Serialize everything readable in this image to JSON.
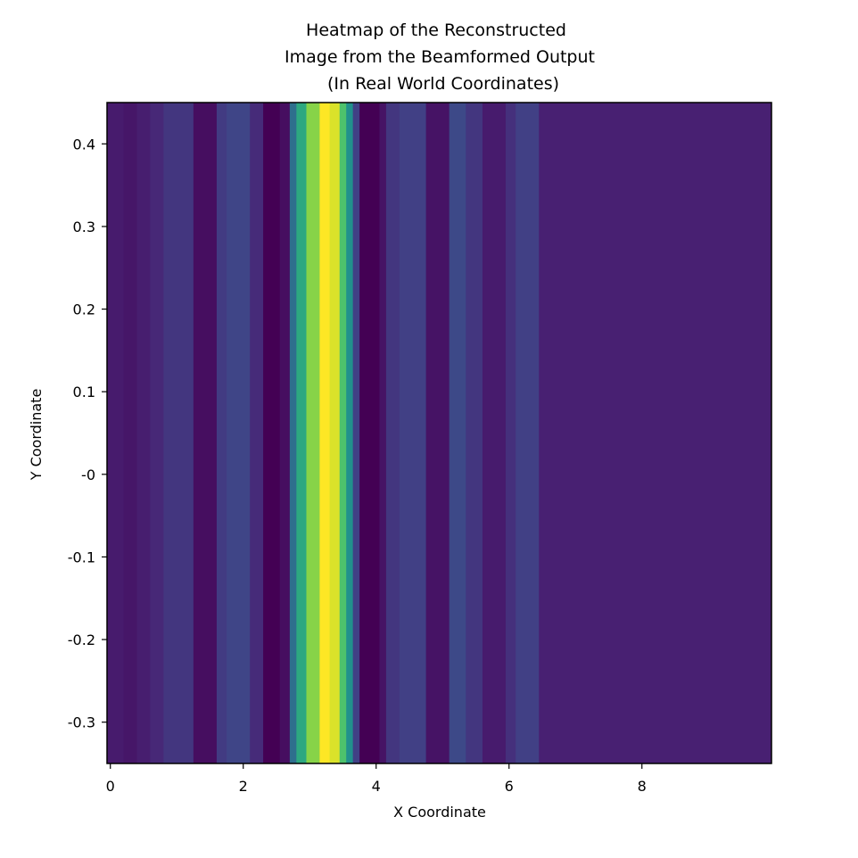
{
  "chart_data": {
    "type": "heatmap",
    "title_lines": [
      "Heatmap of the Reconstructed",
      "Image from the Beamformed Output",
      "(In Real World Coordinates)"
    ],
    "xlabel": "X Coordinate",
    "ylabel": "Y Coordinate",
    "xlim": [
      -0.05,
      9.95
    ],
    "ylim": [
      -0.35,
      0.45
    ],
    "x_ticks": [
      0,
      2,
      4,
      6,
      8
    ],
    "x_tick_labels": [
      "0",
      "2",
      "4",
      "6",
      "8"
    ],
    "y_ticks": [
      0.4,
      0.3,
      0.2,
      0.1,
      0.0,
      -0.1,
      -0.2,
      -0.3
    ],
    "y_tick_labels": [
      "0.4",
      "0.3",
      "0.2",
      "0.1",
      "-0",
      "-0.1",
      "-0.2",
      "-0.3"
    ],
    "colormap": "viridis",
    "x_edges": [
      -0.05,
      0.2,
      0.4,
      0.6,
      0.8,
      1.25,
      1.6,
      1.75,
      2.1,
      2.3,
      2.55,
      2.7,
      2.8,
      2.95,
      3.15,
      3.3,
      3.45,
      3.55,
      3.65,
      3.75,
      4.05,
      4.15,
      4.35,
      4.75,
      5.1,
      5.35,
      5.6,
      5.95,
      6.1,
      6.45,
      9.95
    ],
    "column_values": [
      0.1,
      0.08,
      0.11,
      0.15,
      0.2,
      0.05,
      0.22,
      0.26,
      0.16,
      0.0,
      0.05,
      0.42,
      0.58,
      0.82,
      1.0,
      0.95,
      0.7,
      0.5,
      0.24,
      0.0,
      0.07,
      0.2,
      0.24,
      0.07,
      0.28,
      0.2,
      0.1,
      0.18,
      0.24,
      0.12
    ]
  }
}
